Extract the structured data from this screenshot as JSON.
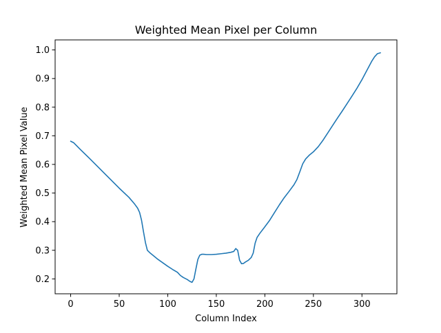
{
  "chart_data": {
    "type": "line",
    "title": "Weighted Mean Pixel per Column",
    "xlabel": "Column Index",
    "ylabel": "Weighted Mean Pixel Value",
    "xlim": [
      -16,
      336
    ],
    "ylim": [
      0.148,
      1.035
    ],
    "xticks": [
      0,
      50,
      100,
      150,
      200,
      250,
      300
    ],
    "yticks": [
      0.2,
      0.3,
      0.4,
      0.5,
      0.6,
      0.7,
      0.8,
      0.9,
      1.0
    ],
    "xtick_labels": [
      "0",
      "50",
      "100",
      "150",
      "200",
      "250",
      "300"
    ],
    "ytick_labels": [
      "0.2",
      "0.3",
      "0.4",
      "0.5",
      "0.6",
      "0.7",
      "0.8",
      "0.9",
      "1.0"
    ],
    "grid": false,
    "legend": "none",
    "series": [
      {
        "color": "#1f77b4",
        "x": [
          0,
          3,
          10,
          20,
          30,
          40,
          50,
          60,
          66,
          69,
          71,
          73,
          75,
          77,
          79,
          82,
          86,
          90,
          95,
          100,
          105,
          110,
          113,
          116,
          120,
          123,
          125,
          127,
          129,
          131,
          133,
          135,
          137,
          140,
          145,
          150,
          155,
          160,
          165,
          168,
          170,
          172,
          174,
          176,
          178,
          180,
          183,
          186,
          188,
          190,
          192,
          195,
          200,
          205,
          210,
          215,
          220,
          225,
          230,
          233,
          236,
          239,
          242,
          246,
          250,
          255,
          260,
          265,
          270,
          275,
          280,
          285,
          290,
          295,
          300,
          305,
          310,
          313,
          316,
          319
        ],
        "y": [
          0.681,
          0.676,
          0.652,
          0.619,
          0.585,
          0.551,
          0.517,
          0.485,
          0.461,
          0.447,
          0.432,
          0.405,
          0.365,
          0.327,
          0.3,
          0.29,
          0.279,
          0.268,
          0.256,
          0.244,
          0.233,
          0.223,
          0.212,
          0.205,
          0.198,
          0.191,
          0.188,
          0.2,
          0.235,
          0.268,
          0.283,
          0.286,
          0.286,
          0.285,
          0.285,
          0.286,
          0.288,
          0.29,
          0.293,
          0.296,
          0.306,
          0.3,
          0.265,
          0.253,
          0.254,
          0.259,
          0.265,
          0.275,
          0.29,
          0.325,
          0.345,
          0.36,
          0.382,
          0.405,
          0.432,
          0.459,
          0.484,
          0.506,
          0.529,
          0.547,
          0.574,
          0.602,
          0.619,
          0.633,
          0.644,
          0.662,
          0.685,
          0.711,
          0.737,
          0.763,
          0.788,
          0.814,
          0.84,
          0.867,
          0.896,
          0.928,
          0.96,
          0.976,
          0.987,
          0.99
        ]
      }
    ]
  }
}
